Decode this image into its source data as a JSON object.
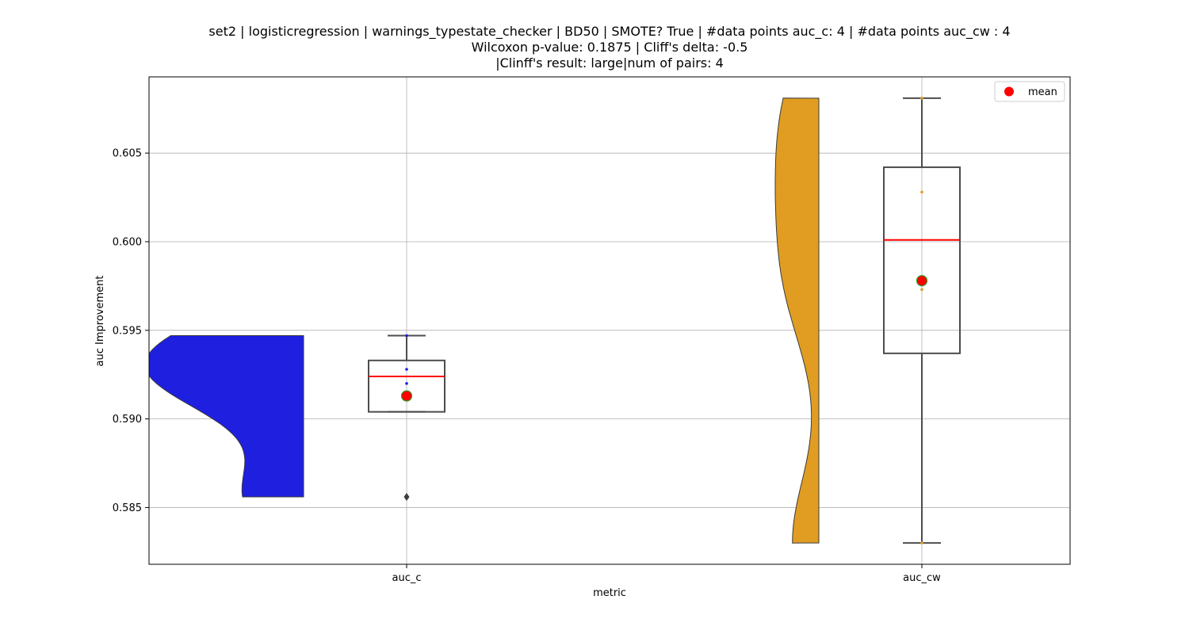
{
  "chart_data": {
    "type": "box",
    "title_lines": [
      "set2 | logisticregression | warnings_typestate_checker | BD50 | SMOTE? True | #data points auc_c: 4 | #data points auc_cw : 4",
      "Wilcoxon p-value: 0.1875 | Cliff's delta: -0.5",
      "|Clinff's result: large|num of pairs: 4"
    ],
    "xlabel": "metric",
    "ylabel": "auc Improvement",
    "categories": [
      "auc_c",
      "auc_cw"
    ],
    "ylim": [
      0.5818,
      0.6093
    ],
    "yticks": [
      0.585,
      0.59,
      0.595,
      0.6,
      0.605
    ],
    "ytick_labels": [
      "0.585",
      "0.590",
      "0.595",
      "0.600",
      "0.605"
    ],
    "grid": true,
    "legend": {
      "placement": "top-right",
      "entries": [
        "mean"
      ]
    },
    "colors": {
      "auc_c_violin": "#1f1fe0",
      "auc_cw_violin": "#e09d22",
      "median": "#ff0000",
      "mean_marker": "#ff0000",
      "mean_edge": "#2e9e2e",
      "box_edge": "#4d4d4d",
      "grid": "#b0b0b0"
    },
    "series": [
      {
        "category": "auc_c",
        "points": [
          0.5856,
          0.592,
          0.5928,
          0.5947
        ],
        "whisker_low": 0.5904,
        "q1": 0.5904,
        "median": 0.5924,
        "q3": 0.5933,
        "whisker_high": 0.5947,
        "mean": 0.5913,
        "outliers": [
          0.5856
        ],
        "violin_range": [
          0.5856,
          0.5947
        ]
      },
      {
        "category": "auc_cw",
        "points": [
          0.583,
          0.5973,
          0.6028,
          0.6081
        ],
        "whisker_low": 0.583,
        "q1": 0.5937,
        "median": 0.6001,
        "q3": 0.6042,
        "whisker_high": 0.6081,
        "mean": 0.5978,
        "outliers": [],
        "violin_range": [
          0.583,
          0.6081
        ]
      }
    ]
  }
}
